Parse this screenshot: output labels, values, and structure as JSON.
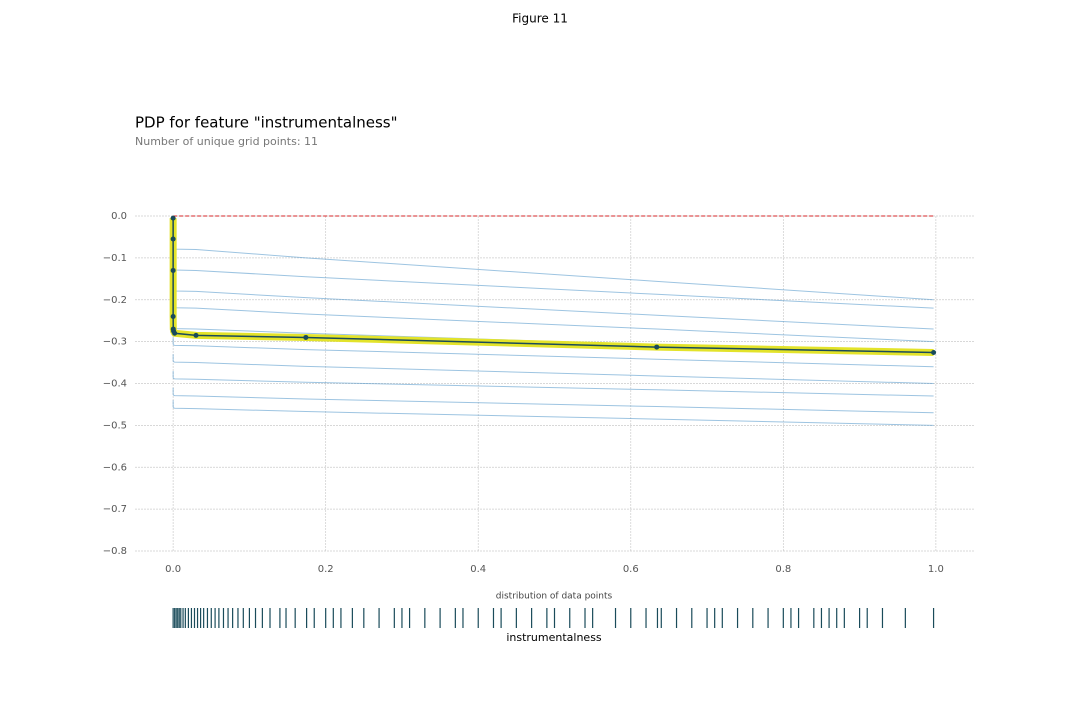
{
  "figure_title": "Figure 11",
  "chart_data": {
    "type": "pdp",
    "title": "PDP for feature \"instrumentalness\"",
    "subtitle": "Number of unique grid points: 11",
    "x": [
      0,
      0,
      0,
      0,
      0.0002,
      0.0006,
      0.002,
      0.03,
      0.174,
      0.634,
      0.997
    ],
    "values": [
      -0.005,
      -0.055,
      -0.13,
      -0.24,
      -0.27,
      -0.275,
      -0.28,
      -0.285,
      -0.29,
      -0.313,
      -0.326
    ],
    "color": "#1a4b5a",
    "band_color": "#e3e32a",
    "ice_color": "#4d94c9",
    "ice_lines": [
      [
        -0.06,
        -0.065,
        -0.07,
        -0.075,
        -0.077,
        -0.078,
        -0.079,
        -0.08,
        -0.1,
        -0.156,
        -0.2
      ],
      [
        -0.11,
        -0.115,
        -0.12,
        -0.125,
        -0.127,
        -0.128,
        -0.129,
        -0.13,
        -0.145,
        -0.187,
        -0.22
      ],
      [
        -0.16,
        -0.165,
        -0.17,
        -0.175,
        -0.177,
        -0.178,
        -0.179,
        -0.18,
        -0.195,
        -0.237,
        -0.27
      ],
      [
        -0.2,
        -0.205,
        -0.21,
        -0.215,
        -0.217,
        -0.218,
        -0.219,
        -0.22,
        -0.234,
        -0.27,
        -0.3
      ],
      [
        -0.25,
        -0.255,
        -0.26,
        -0.265,
        -0.267,
        -0.268,
        -0.269,
        -0.27,
        -0.28,
        -0.308,
        -0.33
      ],
      [
        -0.29,
        -0.295,
        -0.3,
        -0.305,
        -0.307,
        -0.308,
        -0.309,
        -0.31,
        -0.319,
        -0.342,
        -0.36
      ],
      [
        -0.33,
        -0.335,
        -0.34,
        -0.345,
        -0.347,
        -0.348,
        -0.349,
        -0.35,
        -0.359,
        -0.382,
        -0.4
      ],
      [
        -0.37,
        -0.375,
        -0.38,
        -0.385,
        -0.387,
        -0.388,
        -0.389,
        -0.39,
        -0.397,
        -0.415,
        -0.43
      ],
      [
        -0.41,
        -0.415,
        -0.42,
        -0.425,
        -0.427,
        -0.428,
        -0.429,
        -0.43,
        -0.437,
        -0.455,
        -0.47
      ],
      [
        -0.44,
        -0.445,
        -0.45,
        -0.455,
        -0.457,
        -0.458,
        -0.459,
        -0.46,
        -0.467,
        -0.485,
        -0.5
      ]
    ],
    "reference_line": 0,
    "reference_color": "#d62728",
    "xlim": [
      -0.05,
      1.05
    ],
    "ylim": [
      -0.8,
      0
    ],
    "xticks": [
      {
        "value": 0,
        "label": "0.0"
      },
      0.2,
      0.4,
      0.6,
      0.8,
      {
        "value": 1,
        "label": "1.0"
      }
    ],
    "yticks": [
      {
        "value": 0,
        "label": "0.0"
      },
      {
        "value": -0.1,
        "label": "−0.1"
      },
      {
        "value": -0.2,
        "label": "−0.2"
      },
      {
        "value": -0.3,
        "label": "−0.3"
      },
      {
        "value": -0.4,
        "label": "−0.4"
      },
      {
        "value": -0.5,
        "label": "−0.5"
      },
      {
        "value": -0.6,
        "label": "−0.6"
      },
      {
        "value": -0.7,
        "label": "−0.7"
      },
      {
        "value": -0.8,
        "label": "−0.8"
      }
    ],
    "grid": true,
    "distribution_title": "distribution of data points",
    "xlabel": "instrumentalness",
    "distribution": [
      0,
      0.002,
      0.004,
      0.006,
      0.008,
      0.01,
      0.013,
      0.016,
      0.02,
      0.024,
      0.028,
      0.032,
      0.036,
      0.04,
      0.045,
      0.05,
      0.055,
      0.06,
      0.066,
      0.072,
      0.078,
      0.085,
      0.092,
      0.1,
      0.108,
      0.117,
      0.127,
      0.14,
      0.148,
      0.16,
      0.175,
      0.185,
      0.2,
      0.21,
      0.22,
      0.235,
      0.25,
      0.27,
      0.29,
      0.3,
      0.31,
      0.33,
      0.35,
      0.37,
      0.38,
      0.4,
      0.42,
      0.43,
      0.45,
      0.47,
      0.49,
      0.5,
      0.52,
      0.54,
      0.55,
      0.58,
      0.6,
      0.62,
      0.635,
      0.64,
      0.66,
      0.68,
      0.7,
      0.71,
      0.72,
      0.74,
      0.76,
      0.78,
      0.8,
      0.81,
      0.82,
      0.84,
      0.85,
      0.86,
      0.87,
      0.88,
      0.9,
      0.91,
      0.93,
      0.96,
      0.997
    ]
  }
}
